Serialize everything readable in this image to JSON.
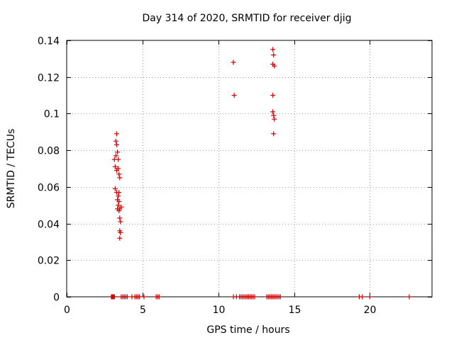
{
  "chart_data": {
    "type": "scatter",
    "title": "Day 314 of 2020, SRMTID for receiver djig",
    "xlabel": "GPS time / hours",
    "ylabel": "SRMTID / TECUs",
    "xlim": [
      0,
      24.1
    ],
    "ylim": [
      0,
      0.14
    ],
    "xticks": [
      0,
      5,
      10,
      15,
      20
    ],
    "xtick_labels": [
      "0",
      "5",
      "10",
      "15",
      "20"
    ],
    "yticks": [
      0,
      0.02,
      0.04,
      0.06,
      0.08,
      0.1,
      0.12,
      0.14
    ],
    "ytick_labels": [
      "0",
      "0.02",
      "0.04",
      "0.06",
      "0.08",
      "0.1",
      "0.12",
      "0.14"
    ],
    "grid": true,
    "marker": "+",
    "color": "#cc0000",
    "series": [
      {
        "name": "SRMTID",
        "points": [
          [
            3.15,
            0.075
          ],
          [
            3.2,
            0.071
          ],
          [
            3.2,
            0.059
          ],
          [
            3.25,
            0.085
          ],
          [
            3.25,
            0.077
          ],
          [
            3.3,
            0.089
          ],
          [
            3.3,
            0.083
          ],
          [
            3.3,
            0.069
          ],
          [
            3.3,
            0.057
          ],
          [
            3.35,
            0.079
          ],
          [
            3.35,
            0.053
          ],
          [
            3.35,
            0.048
          ],
          [
            3.4,
            0.075
          ],
          [
            3.4,
            0.07
          ],
          [
            3.4,
            0.055
          ],
          [
            3.4,
            0.05
          ],
          [
            3.45,
            0.067
          ],
          [
            3.45,
            0.057
          ],
          [
            3.45,
            0.052
          ],
          [
            3.45,
            0.047
          ],
          [
            3.5,
            0.065
          ],
          [
            3.5,
            0.048
          ],
          [
            3.5,
            0.043
          ],
          [
            3.5,
            0.036
          ],
          [
            3.5,
            0.032
          ],
          [
            3.55,
            0.041
          ],
          [
            3.55,
            0.035
          ],
          [
            3.6,
            0.049
          ],
          [
            11.0,
            0.128
          ],
          [
            11.05,
            0.11
          ],
          [
            13.6,
            0.135
          ],
          [
            13.6,
            0.127
          ],
          [
            13.6,
            0.11
          ],
          [
            13.6,
            0.101
          ],
          [
            13.65,
            0.132
          ],
          [
            13.65,
            0.099
          ],
          [
            13.65,
            0.089
          ],
          [
            13.7,
            0.126
          ],
          [
            13.7,
            0.097
          ],
          [
            2.95,
            0
          ],
          [
            3.0,
            0
          ],
          [
            3.05,
            0
          ],
          [
            3.1,
            0
          ],
          [
            3.15,
            0
          ],
          [
            3.6,
            0
          ],
          [
            3.7,
            0
          ],
          [
            3.8,
            0
          ],
          [
            3.9,
            0
          ],
          [
            4.0,
            0
          ],
          [
            4.3,
            0
          ],
          [
            4.5,
            0
          ],
          [
            4.6,
            0
          ],
          [
            4.7,
            0
          ],
          [
            4.8,
            0
          ],
          [
            5.1,
            0
          ],
          [
            5.9,
            0
          ],
          [
            6.0,
            0
          ],
          [
            6.1,
            0
          ],
          [
            11.0,
            0
          ],
          [
            11.2,
            0
          ],
          [
            11.4,
            0
          ],
          [
            11.5,
            0
          ],
          [
            11.6,
            0
          ],
          [
            11.7,
            0
          ],
          [
            11.8,
            0
          ],
          [
            11.9,
            0
          ],
          [
            12.0,
            0
          ],
          [
            12.1,
            0
          ],
          [
            12.2,
            0
          ],
          [
            12.3,
            0
          ],
          [
            12.4,
            0
          ],
          [
            13.2,
            0
          ],
          [
            13.3,
            0
          ],
          [
            13.4,
            0
          ],
          [
            13.5,
            0
          ],
          [
            13.6,
            0
          ],
          [
            13.7,
            0
          ],
          [
            13.8,
            0
          ],
          [
            13.9,
            0
          ],
          [
            14.0,
            0
          ],
          [
            14.1,
            0
          ],
          [
            19.3,
            0
          ],
          [
            19.5,
            0
          ],
          [
            20.0,
            0
          ],
          [
            22.6,
            0
          ]
        ]
      }
    ]
  }
}
